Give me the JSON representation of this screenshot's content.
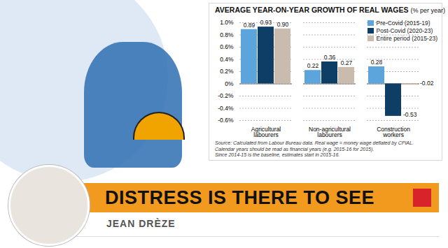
{
  "chart_data": {
    "type": "bar",
    "title": "AVERAGE YEAR-ON-YEAR GROWTH OF REAL WAGES",
    "subtitle": "(% per year)",
    "categories": [
      "Agricultural labourers",
      "Non-agricultural labourers",
      "Construction workers"
    ],
    "series": [
      {
        "name": "Pre-Covid (2015-19)",
        "color": "#5ba4dc",
        "values": [
          0.89,
          0.22,
          0.28
        ],
        "value_labels": [
          "0.89",
          "0.22",
          "0.28"
        ]
      },
      {
        "name": "Post-Covid (2020-23)",
        "color": "#0e3d66",
        "values": [
          0.93,
          0.36,
          -0.53
        ],
        "value_labels": [
          "0.93",
          "0.36",
          "-0.53"
        ]
      },
      {
        "name": "Entire period (2015-23)",
        "color": "#c9bcae",
        "values": [
          0.9,
          0.27,
          -0.02
        ],
        "value_labels": [
          "0.90",
          "0.27",
          "-0.02"
        ]
      }
    ],
    "ylim": [
      -0.6,
      1.0
    ],
    "yticks": [
      {
        "value": -0.6,
        "label": "-0.6%"
      },
      {
        "value": -0.4,
        "label": "-0.4%"
      },
      {
        "value": -0.2,
        "label": "-0.2%"
      },
      {
        "value": 0,
        "label": "0%"
      },
      {
        "value": 0.2,
        "label": "0.2%"
      },
      {
        "value": 0.4,
        "label": "0.4%"
      },
      {
        "value": 0.6,
        "label": "0.6%"
      },
      {
        "value": 0.8,
        "label": "0.8%"
      },
      {
        "value": 1.0,
        "label": "1.0%"
      }
    ],
    "grid": true,
    "legend": "upper right",
    "data_labels": true,
    "source": [
      "Source: Calculated from Labour Bureau data. Real wage = money wage deflated by CPIAL.",
      "Calendar years should be read as financial years (e.g. 2015-16 for 2015).",
      "Since 2014-15 is the baseline, estimates start in 2015-16."
    ]
  },
  "headline": "DISTRESS IS THERE TO SEE",
  "author": "JEAN DRÈZE"
}
